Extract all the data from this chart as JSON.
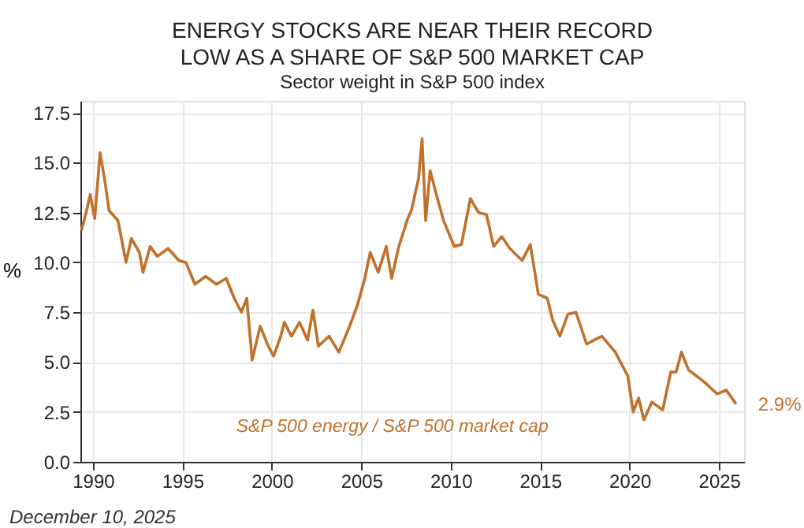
{
  "chart_data": {
    "type": "line",
    "title": "ENERGY STOCKS ARE NEAR THEIR RECORD LOW AS A SHARE OF S&P 500 MARKET CAP",
    "subtitle": "Sector weight in S&P 500 index",
    "ylabel": "%",
    "x": [
      1989.35,
      1989.65,
      1989.85,
      1990.1,
      1990.4,
      1990.7,
      1990.9,
      1991.4,
      1991.85,
      1992.15,
      1992.6,
      1992.8,
      1993.2,
      1993.6,
      1994.2,
      1994.8,
      1995.2,
      1995.7,
      1996.3,
      1996.9,
      1997.45,
      1997.9,
      1998.3,
      1998.6,
      1998.9,
      1999.35,
      1999.8,
      2000.1,
      2000.5,
      2000.7,
      2001.1,
      2001.55,
      2002.0,
      2002.3,
      2002.6,
      2003.2,
      2003.75,
      2004.35,
      2004.8,
      2005.2,
      2005.5,
      2005.95,
      2006.4,
      2006.7,
      2007.1,
      2007.6,
      2007.8,
      2008.2,
      2008.4,
      2008.6,
      2008.85,
      2009.2,
      2009.6,
      2010.2,
      2010.6,
      2011.1,
      2011.55,
      2012.0,
      2012.4,
      2012.85,
      2013.3,
      2014.0,
      2014.45,
      2014.9,
      2015.4,
      2015.7,
      2016.1,
      2016.55,
      2017.0,
      2017.6,
      2018.0,
      2018.45,
      2019.2,
      2019.9,
      2020.2,
      2020.5,
      2020.8,
      2021.25,
      2021.85,
      2022.3,
      2022.6,
      2022.9,
      2023.3,
      2023.9,
      2024.3,
      2024.9,
      2025.4,
      2025.95
    ],
    "series": [
      {
        "name": "S&P 500 energy / S&P 500 market cap",
        "color": "#c0712b",
        "values": [
          11.6,
          12.6,
          13.4,
          12.2,
          15.5,
          13.9,
          12.6,
          12.1,
          10.0,
          11.2,
          10.5,
          9.5,
          10.8,
          10.3,
          10.7,
          10.1,
          10.0,
          8.9,
          9.3,
          8.9,
          9.2,
          8.2,
          7.5,
          8.2,
          5.1,
          6.8,
          5.8,
          5.3,
          6.3,
          7.0,
          6.3,
          7.0,
          6.1,
          7.6,
          5.8,
          6.3,
          5.5,
          6.8,
          7.9,
          9.2,
          10.5,
          9.5,
          10.8,
          9.2,
          10.8,
          12.2,
          12.6,
          14.2,
          16.2,
          12.1,
          14.6,
          13.4,
          12.1,
          10.8,
          10.9,
          13.2,
          12.5,
          12.4,
          10.8,
          11.3,
          10.7,
          10.1,
          10.9,
          8.4,
          8.2,
          7.1,
          6.3,
          7.4,
          7.5,
          5.9,
          6.1,
          6.3,
          5.5,
          4.3,
          2.5,
          3.2,
          2.1,
          3.0,
          2.6,
          4.5,
          4.5,
          5.5,
          4.6,
          4.2,
          3.9,
          3.4,
          3.6,
          2.9
        ]
      }
    ],
    "xlim": [
      1989.3,
      2026.4
    ],
    "xticks": [
      1990,
      1995,
      2000,
      2005,
      2010,
      2015,
      2020,
      2025
    ],
    "ylim": [
      0,
      18.1
    ],
    "yticks": [
      {
        "value": 0,
        "label": "0.0"
      },
      2.5,
      {
        "value": 5,
        "label": "5.0"
      },
      7.5,
      {
        "value": 10,
        "label": "10.0"
      },
      12.5,
      {
        "value": 15,
        "label": "15.0"
      },
      17.5
    ],
    "grid": true,
    "legend": false,
    "line_style": "solid",
    "marker": "none",
    "annotations": [
      {
        "text": "2.9%",
        "x": 2025.95,
        "y": 2.9
      },
      "December 10, 2025"
    ]
  }
}
